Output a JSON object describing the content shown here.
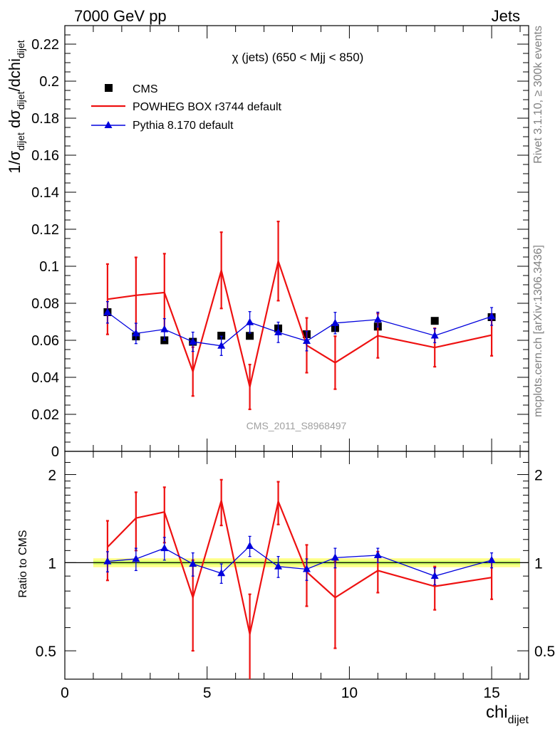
{
  "header": {
    "left": "7000 GeV pp",
    "right": "Jets"
  },
  "side_labels": {
    "rivet": "Rivet 3.1.10, ≥ 300k events",
    "mcplots": "mcplots.cern.ch [arXiv:1306.3436]"
  },
  "watermark": "CMS_2011_S8968497",
  "colors": {
    "cms": "#000000",
    "powheg": "#ee1111",
    "pythia": "#0000dd",
    "band_inner": "#ccff66",
    "band_outer": "#ffff88"
  },
  "chart_data": [
    {
      "type": "scatter",
      "title": "χ (jets) (650 < Mjj <  850)",
      "ylabel": "1/σ_dijet dσ_dijet/dchi_dijet",
      "xlabel": "chi_dijet",
      "xlim": [
        0,
        16.3
      ],
      "ylim": [
        0,
        0.23
      ],
      "yticks": [
        "0",
        "0.02",
        "0.04",
        "0.06",
        "0.08",
        "0.1",
        "0.12",
        "0.14",
        "0.16",
        "0.18",
        "0.2",
        "0.22"
      ],
      "legend_position": "top-left",
      "series": [
        {
          "name": "CMS",
          "style": "markers",
          "x": [
            1.5,
            2.5,
            3.5,
            4.5,
            5.5,
            6.5,
            7.5,
            8.5,
            9.5,
            11,
            13,
            15
          ],
          "y": [
            0.0752,
            0.0621,
            0.06,
            0.0592,
            0.0625,
            0.0624,
            0.0664,
            0.0633,
            0.0666,
            0.0674,
            0.0705,
            0.0725
          ]
        },
        {
          "name": "POWHEG BOX r3744 default",
          "style": "line-errors",
          "x": [
            1.5,
            2.5,
            3.5,
            4.5,
            5.5,
            6.5,
            7.5,
            8.5,
            9.5,
            11,
            13,
            15
          ],
          "y": [
            0.0822,
            0.0843,
            0.0858,
            0.0431,
            0.0978,
            0.0348,
            0.1028,
            0.0573,
            0.0479,
            0.0625,
            0.0561,
            0.0628
          ],
          "err": [
            0.019,
            0.0205,
            0.021,
            0.0132,
            0.0206,
            0.0121,
            0.0214,
            0.0148,
            0.0143,
            0.012,
            0.0104,
            0.0112
          ]
        },
        {
          "name": "Pythia 8.170 default",
          "style": "line-markers-errors",
          "x": [
            1.5,
            2.5,
            3.5,
            4.5,
            5.5,
            6.5,
            7.5,
            8.5,
            9.5,
            11,
            13,
            15
          ],
          "y": [
            0.0751,
            0.0637,
            0.0659,
            0.0592,
            0.057,
            0.0697,
            0.0643,
            0.0596,
            0.0693,
            0.0712,
            0.0625,
            0.0729
          ],
          "err": [
            0.0058,
            0.0055,
            0.0058,
            0.0052,
            0.0052,
            0.0058,
            0.0055,
            0.0053,
            0.0058,
            0.004,
            0.0038,
            0.0048
          ]
        }
      ]
    },
    {
      "type": "scatter",
      "title": "",
      "ylabel": "Ratio to CMS",
      "xlabel": "chi_dijet",
      "xlim": [
        0,
        16.3
      ],
      "ylim": [
        0.4,
        2.4
      ],
      "y_scale": "log",
      "yticks": [
        "0.5",
        "1",
        "2"
      ],
      "xticks": [
        "0",
        "5",
        "10",
        "15"
      ],
      "band": {
        "x_range": [
          1,
          16
        ],
        "inner": [
          0.985,
          1.015
        ],
        "outer": [
          0.965,
          1.035
        ]
      },
      "series": [
        {
          "name": "POWHEG BOX r3744 default",
          "style": "line-errors",
          "x": [
            1.5,
            2.5,
            3.5,
            4.5,
            5.5,
            6.5,
            7.5,
            8.5,
            9.5,
            11,
            13,
            15
          ],
          "y": [
            1.13,
            1.42,
            1.49,
            0.76,
            1.63,
            0.57,
            1.62,
            0.93,
            0.76,
            0.94,
            0.83,
            0.89
          ],
          "err": [
            0.26,
            0.32,
            0.32,
            0.26,
            0.29,
            0.21,
            0.27,
            0.22,
            0.25,
            0.15,
            0.14,
            0.14
          ]
        },
        {
          "name": "Pythia 8.170 default",
          "style": "line-markers-errors",
          "x": [
            1.5,
            2.5,
            3.5,
            4.5,
            5.5,
            6.5,
            7.5,
            8.5,
            9.5,
            11,
            13,
            15
          ],
          "y": [
            1.01,
            1.03,
            1.12,
            0.99,
            0.92,
            1.14,
            0.97,
            0.95,
            1.04,
            1.06,
            0.9,
            1.02
          ],
          "err": [
            0.08,
            0.09,
            0.1,
            0.09,
            0.07,
            0.09,
            0.08,
            0.08,
            0.08,
            0.06,
            0.06,
            0.06
          ]
        }
      ]
    }
  ]
}
